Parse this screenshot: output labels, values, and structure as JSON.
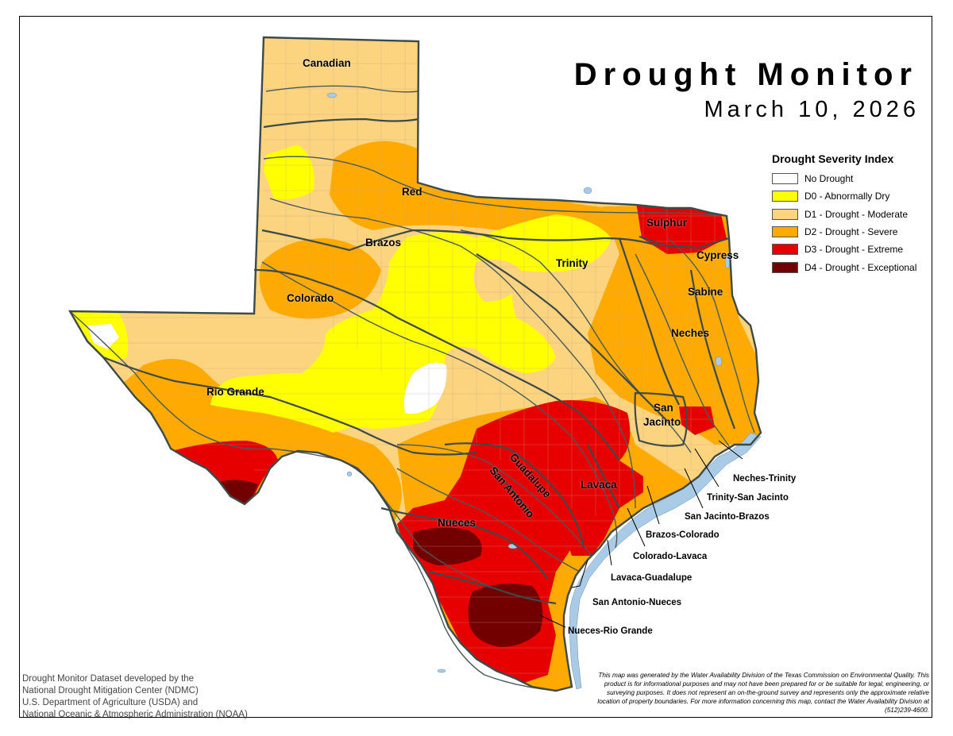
{
  "title": "Drought Monitor",
  "subtitle": "March 10, 2026",
  "legend": {
    "title": "Drought Severity Index",
    "items": [
      {
        "label": "No Drought",
        "color": "#ffffff"
      },
      {
        "label": "D0 - Abnormally Dry",
        "color": "#ffff00"
      },
      {
        "label": "D1 - Drought - Moderate",
        "color": "#fcd37f"
      },
      {
        "label": "D2 - Drought - Severe",
        "color": "#ffaa00"
      },
      {
        "label": "D3 - Drought - Extreme",
        "color": "#e60000"
      },
      {
        "label": "D4 - Drought - Exceptional",
        "color": "#730000"
      }
    ]
  },
  "basins": {
    "canadian": "Canadian",
    "red": "Red",
    "brazos": "Brazos",
    "colorado": "Colorado",
    "rio_grande": "Rio Grande",
    "trinity": "Trinity",
    "sulphur": "Sulphur",
    "cypress": "Cypress",
    "sabine": "Sabine",
    "neches": "Neches",
    "san_jacinto_1": "San",
    "san_jacinto_2": "Jacinto",
    "guadalupe": "Guadalupe",
    "san_antonio": "San Antonio",
    "lavaca": "Lavaca",
    "nueces": "Nueces"
  },
  "coastal_basins": {
    "neches_trinity": "Neches-Trinity",
    "trinity_san_jacinto": "Trinity-San Jacinto",
    "san_jacinto_brazos": "San Jacinto-Brazos",
    "brazos_colorado": "Brazos-Colorado",
    "colorado_lavaca": "Colorado-Lavaca",
    "lavaca_guadalupe": "Lavaca-Guadalupe",
    "san_antonio_nueces": "San Antonio-Nueces",
    "nueces_rio_grande": "Nueces-Rio Grande"
  },
  "credits": {
    "line1": "Drought Monitor Dataset developed by the",
    "line2": "National Drought Mitigation Center (NDMC)",
    "line3": "U.S. Department of Agriculture (USDA) and",
    "line4": "National Oceanic & Atmospheric Administration (NOAA)"
  },
  "disclaimer": "This map was generated by the Water Availability Division of the Texas Commission on Environmental Quality. This product is for informational purposes and may not have been prepared for or be suitable for legal, engineering, or surveying purposes. It does not represent an on-the-ground survey and represents only the approximate relative location of property boundaries. For more information concerning this map, contact the Water Availability Division at (512)239-4600.",
  "colors": {
    "water": "#a9cbe6",
    "river": "#4a5a5a",
    "county": "#b8a890",
    "border": "#3d4a4a"
  }
}
